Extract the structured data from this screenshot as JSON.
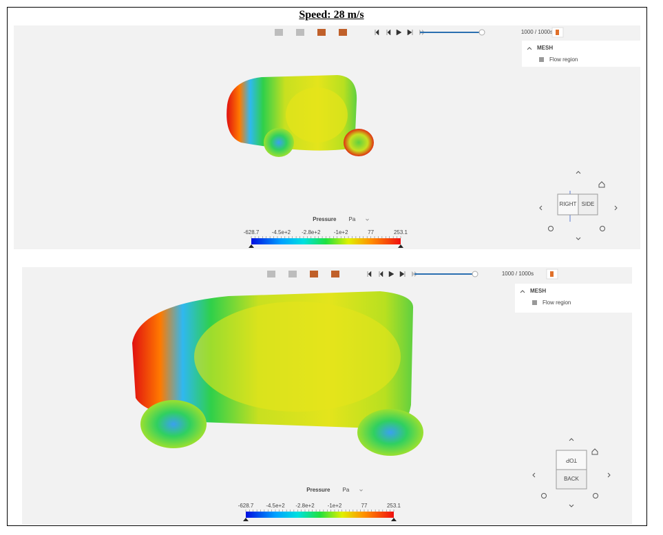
{
  "title": "Speed: 28 m/s",
  "panels": [
    {
      "time": "1000 / 1000s",
      "tree_header": "MESH",
      "tree_item": "Flow region",
      "legend": {
        "label": "Pressure",
        "unit": "Pa",
        "ticks": [
          "-628.7",
          "-4.5e+2",
          "-2.8e+2",
          "-1e+2",
          "77",
          "253.1"
        ]
      },
      "view_cube": [
        "RIGHT",
        "SIDE"
      ]
    },
    {
      "time": "1000 / 1000s",
      "tree_header": "MESH",
      "tree_item": "Flow region",
      "legend": {
        "label": "Pressure",
        "unit": "Pa",
        "ticks": [
          "-628.7",
          "-4.5e+2",
          "-2.8e+2",
          "-1e+2",
          "77",
          "253.1"
        ]
      },
      "view_cube": [
        "TOP",
        "BACK"
      ]
    }
  ]
}
